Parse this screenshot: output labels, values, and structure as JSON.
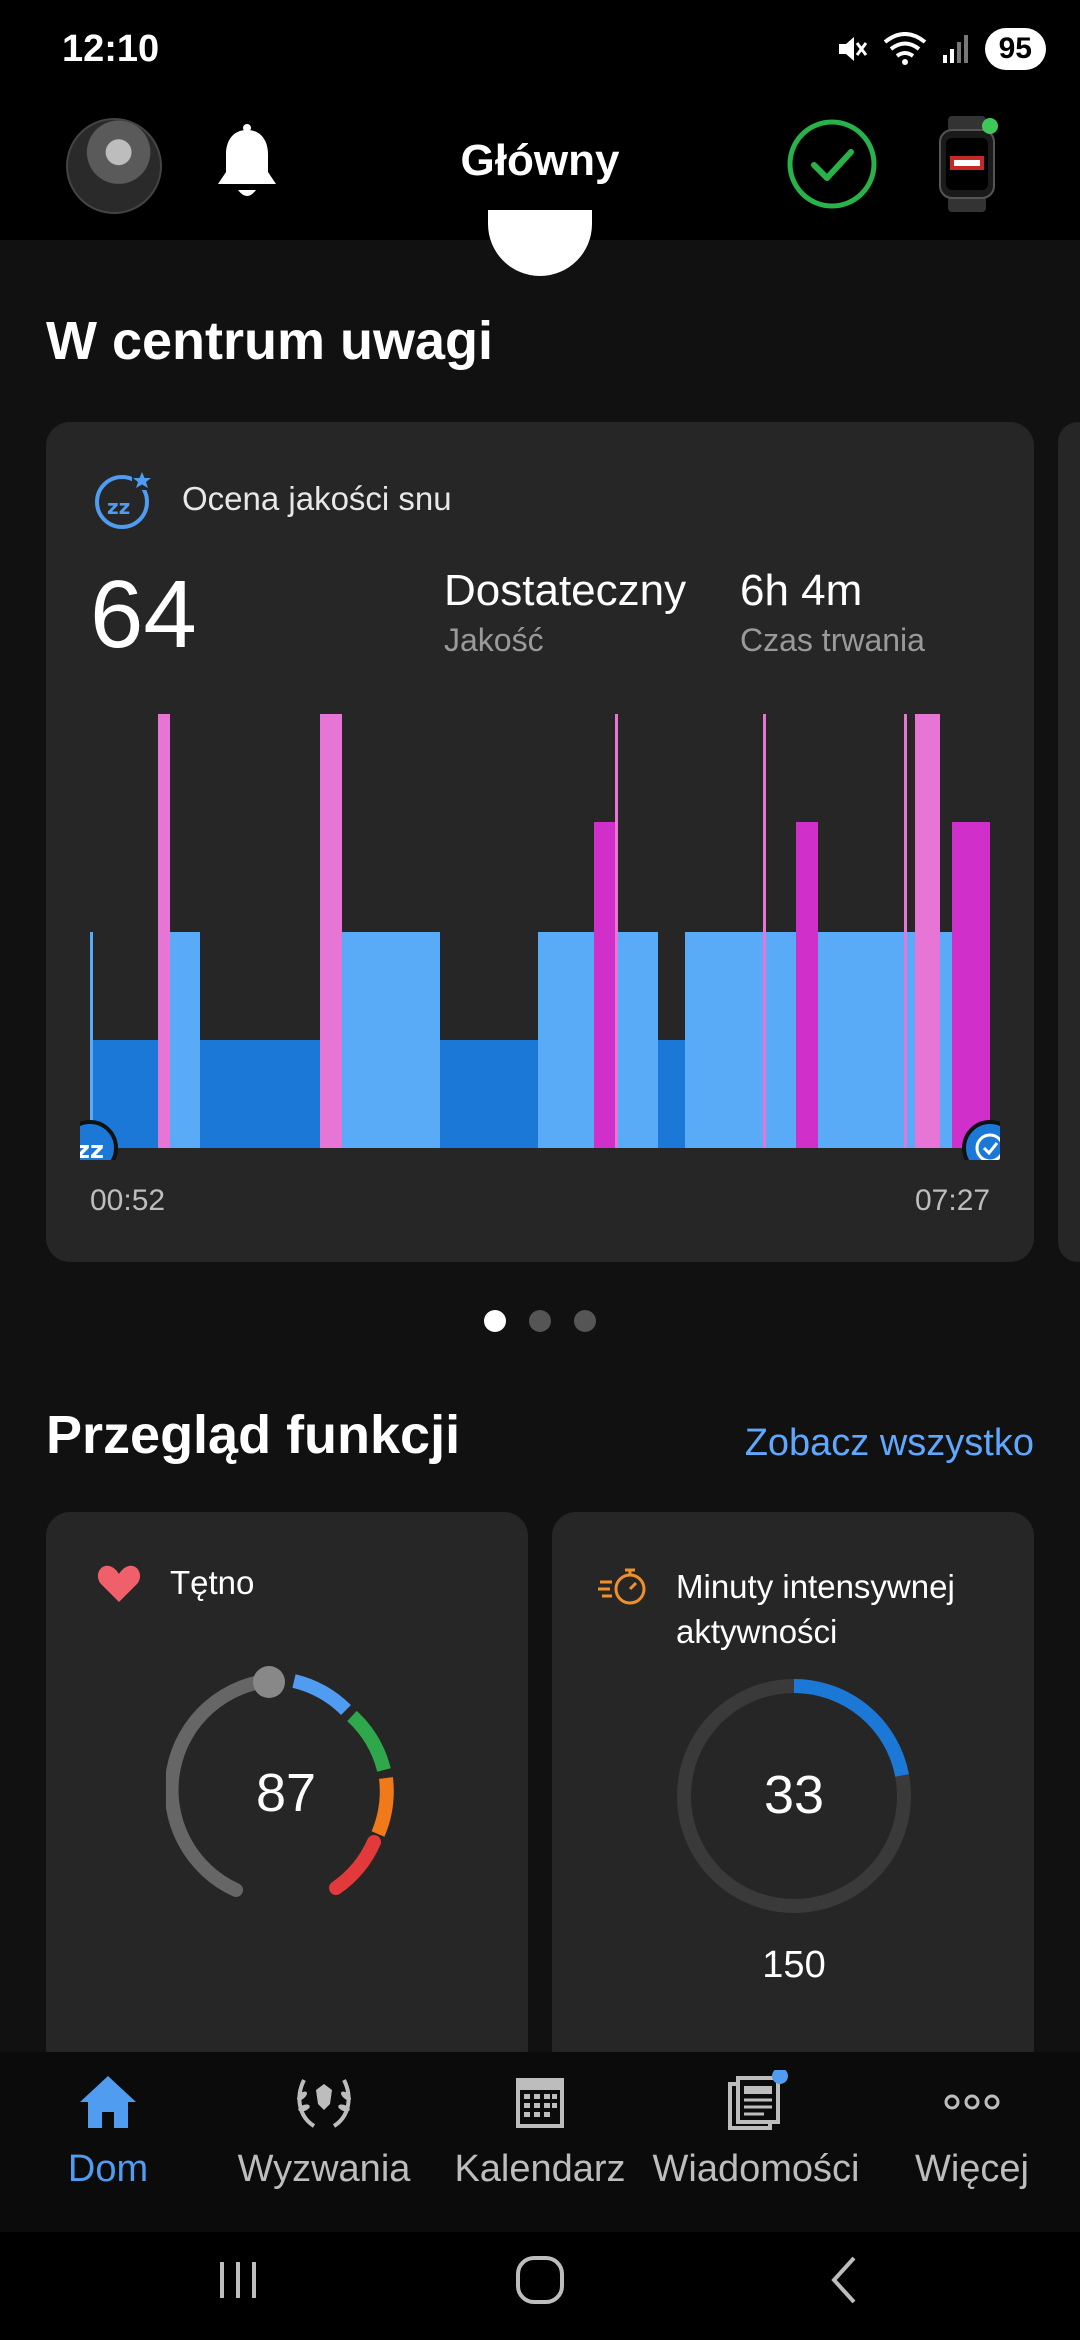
{
  "status_bar": {
    "time": "12:10",
    "battery": "95"
  },
  "top_bar": {
    "title": "Główny"
  },
  "spotlight": {
    "title": "W centrum uwagi",
    "sleep_card": {
      "title": "Ocena jakości snu",
      "score": "64",
      "quality_value": "Dostateczny",
      "quality_label": "Jakość",
      "duration_value": "6h 4m",
      "duration_label": "Czas trwania",
      "start_time": "00:52",
      "end_time": "07:27"
    },
    "pager": {
      "count": 3,
      "active_index": 0
    }
  },
  "features": {
    "title": "Przegląd funkcji",
    "see_all": "Zobacz wszystko",
    "heart_rate": {
      "title": "Tętno",
      "value": "87"
    },
    "intensity": {
      "title": "Minuty intensywnej aktywności",
      "value": "33",
      "goal": "150",
      "progress_fraction": 0.22
    }
  },
  "bottom_nav": {
    "items": [
      {
        "label": "Dom",
        "icon": "home-icon",
        "active": true
      },
      {
        "label": "Wyzwania",
        "icon": "laurel-icon",
        "active": false
      },
      {
        "label": "Kalendarz",
        "icon": "calendar-icon",
        "active": false
      },
      {
        "label": "Wiadomości",
        "icon": "news-icon",
        "active": false
      },
      {
        "label": "Więcej",
        "icon": "more-dots-icon",
        "active": false
      }
    ]
  },
  "colors": {
    "accent_blue": "#4f9cf0",
    "light_sleep": "#5aabf7",
    "deep_sleep": "#1c78d6",
    "rem_sleep": "#d12fc9",
    "awake": "#e675d6",
    "check_green": "#28b34a"
  }
}
